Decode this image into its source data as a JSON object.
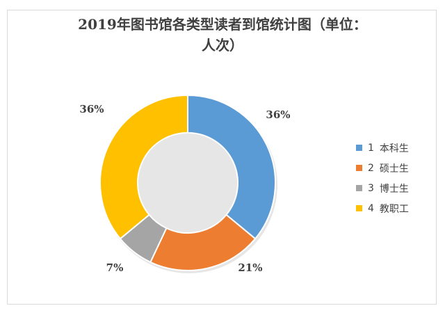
{
  "chart_data": {
    "type": "pie",
    "title_line1": "2019年图书馆各类型读者到馆统计图（单位：",
    "title_line2": "人次）",
    "categories": [
      "1 本科生",
      "2 硕士生",
      "3 博士生",
      "4 教职工"
    ],
    "legend": [
      {
        "num": "1",
        "label": "本科生"
      },
      {
        "num": "2",
        "label": "硕士生"
      },
      {
        "num": "3",
        "label": "博士生"
      },
      {
        "num": "4",
        "label": "教职工"
      }
    ],
    "values": [
      36,
      21,
      7,
      36
    ],
    "data_labels": [
      "36%",
      "21%",
      "7%",
      "36%"
    ],
    "colors": [
      "#5b9bd5",
      "#ed7d31",
      "#a5a5a5",
      "#ffc000"
    ],
    "donut": true,
    "legend_position": "right"
  }
}
